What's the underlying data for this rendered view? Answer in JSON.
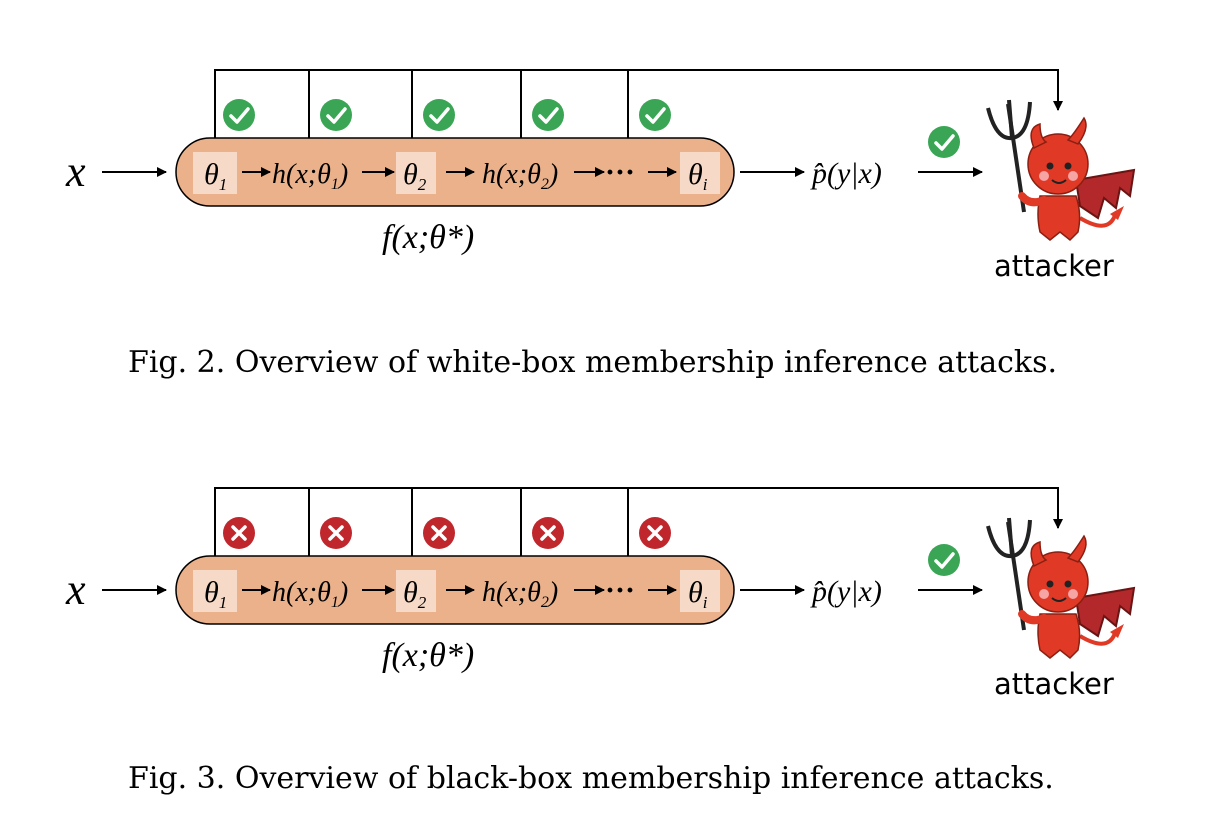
{
  "figures": [
    {
      "input_symbol": "x",
      "params": [
        "θ",
        "θ",
        "θ",
        "θ"
      ],
      "param_subs": [
        "1",
        "2",
        "i"
      ],
      "h1": {
        "pre": "h(x;θ",
        "sub": "1",
        "post": ")"
      },
      "h2": {
        "pre": "h(x;θ",
        "sub": "2",
        "post": ")"
      },
      "ellipsis": "···",
      "model_label": "f(x;θ*)",
      "output_label": "p̂(y|x)",
      "attacker_label": "attacker",
      "access": [
        "check",
        "check",
        "check",
        "check",
        "check"
      ],
      "output_access": "check",
      "caption": "Fig. 2.  Overview of white-box membership inference attacks."
    },
    {
      "input_symbol": "x",
      "params": [
        "θ",
        "θ",
        "θ",
        "θ"
      ],
      "param_subs": [
        "1",
        "2",
        "i"
      ],
      "h1": {
        "pre": "h(x;θ",
        "sub": "1",
        "post": ")"
      },
      "h2": {
        "pre": "h(x;θ",
        "sub": "2",
        "post": ")"
      },
      "ellipsis": "···",
      "model_label": "f(x;θ*)",
      "output_label": "p̂(y|x)",
      "attacker_label": "attacker",
      "access": [
        "cross",
        "cross",
        "cross",
        "cross",
        "cross"
      ],
      "output_access": "check",
      "caption": "Fig. 3.  Overview of black-box membership inference attacks."
    }
  ],
  "colors": {
    "pipeline_fill": "#ebb18b",
    "param_box": "#f6d9c6",
    "check": "#3aa655",
    "cross": "#c0272d",
    "devil": "#e03a26",
    "wing": "#b3282a"
  }
}
